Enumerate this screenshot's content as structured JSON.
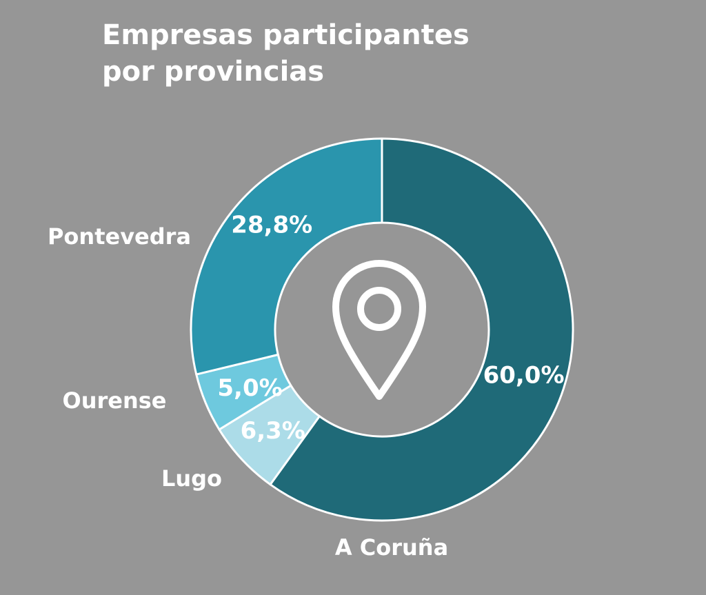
{
  "chart_data": {
    "type": "pie",
    "variant": "donut",
    "title": [
      "Empresas participantes",
      "por provincias"
    ],
    "categories": [
      "A Coruña",
      "Lugo",
      "Ourense",
      "Pontevedra"
    ],
    "values": [
      60.0,
      6.3,
      5.0,
      28.8
    ],
    "value_labels": [
      "60,0%",
      "6,3%",
      "5,0%",
      "28,8%"
    ],
    "unit": "%",
    "colors": [
      "#1f6a78",
      "#acdce8",
      "#6ec9de",
      "#2a95ad"
    ],
    "start": "12 o'clock",
    "direction": "clockwise",
    "center_icon": "location-pin-icon",
    "legend": "none"
  },
  "theme": {
    "background": "#969696",
    "text": "#ffffff",
    "slice_border": "#ffffff"
  }
}
